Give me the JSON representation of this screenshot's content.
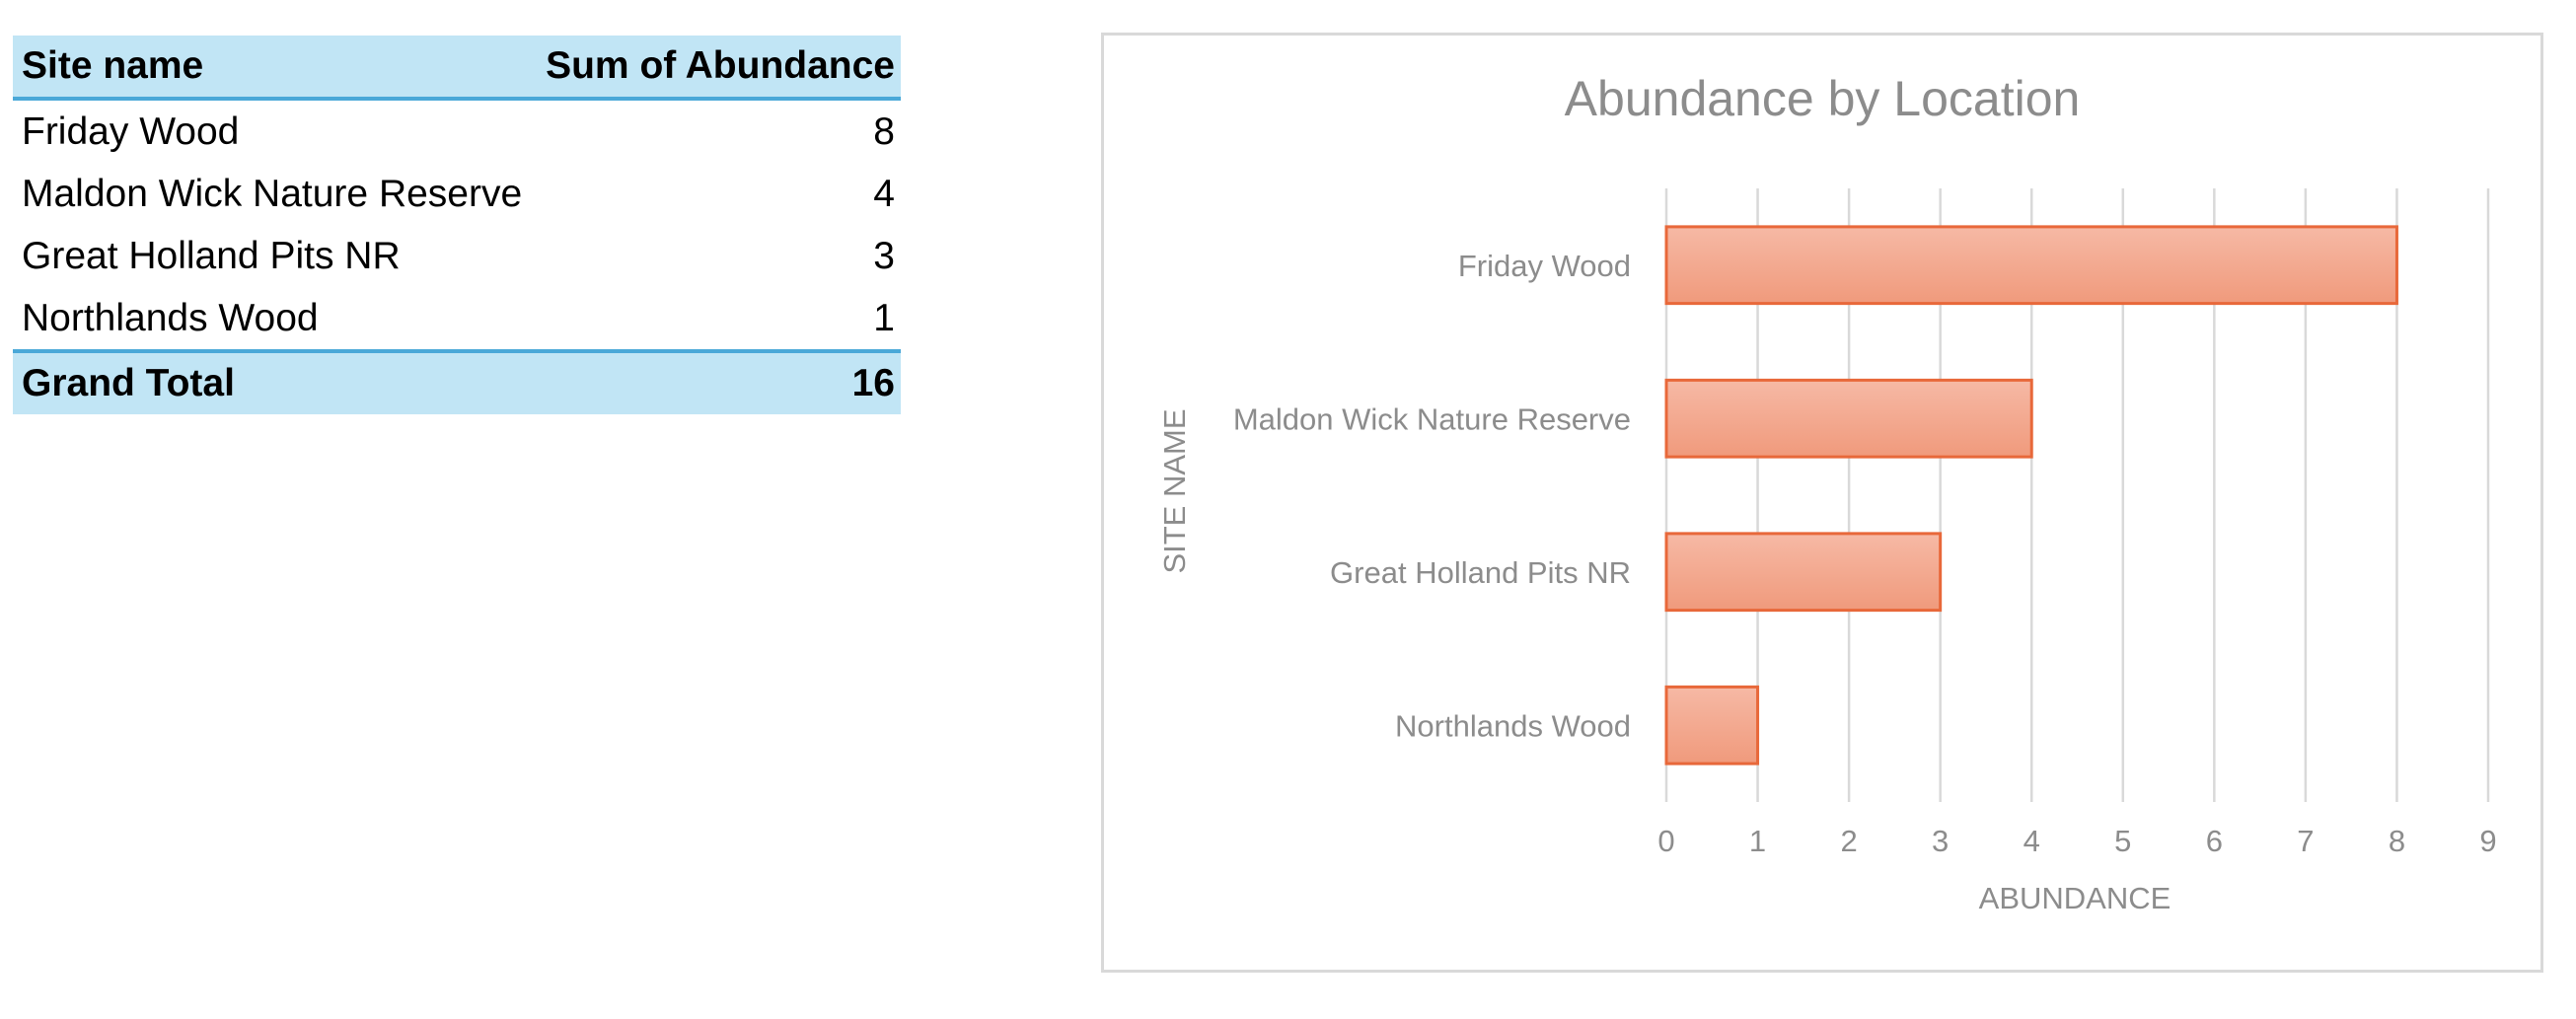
{
  "pivot": {
    "col_site": "Site name",
    "col_sum": "Sum of Abundance",
    "rows": [
      {
        "name": "Friday Wood",
        "value": "8"
      },
      {
        "name": "Maldon Wick Nature Reserve",
        "value": "4"
      },
      {
        "name": "Great Holland Pits NR",
        "value": "3"
      },
      {
        "name": "Northlands Wood",
        "value": "1"
      }
    ],
    "total_label": "Grand Total",
    "total_value": "16"
  },
  "chart_data": {
    "type": "bar",
    "orientation": "horizontal",
    "title": "Abundance by Location",
    "xlabel": "ABUNDANCE",
    "ylabel": "SITE NAME",
    "categories": [
      "Friday Wood",
      "Maldon Wick Nature Reserve",
      "Great Holland Pits NR",
      "Northlands Wood"
    ],
    "values": [
      8,
      4,
      3,
      1
    ],
    "xlim": [
      0,
      9
    ],
    "xticks": [
      0,
      1,
      2,
      3,
      4,
      5,
      6,
      7,
      8,
      9
    ],
    "grid": "vertical",
    "legend": "none",
    "colors": {
      "bar_fill_top": "#f6b9a5",
      "bar_fill_bottom": "#f09a7c",
      "bar_edge": "#e8683a",
      "grid": "#d9d9d9",
      "text": "#8c8c8c"
    }
  }
}
